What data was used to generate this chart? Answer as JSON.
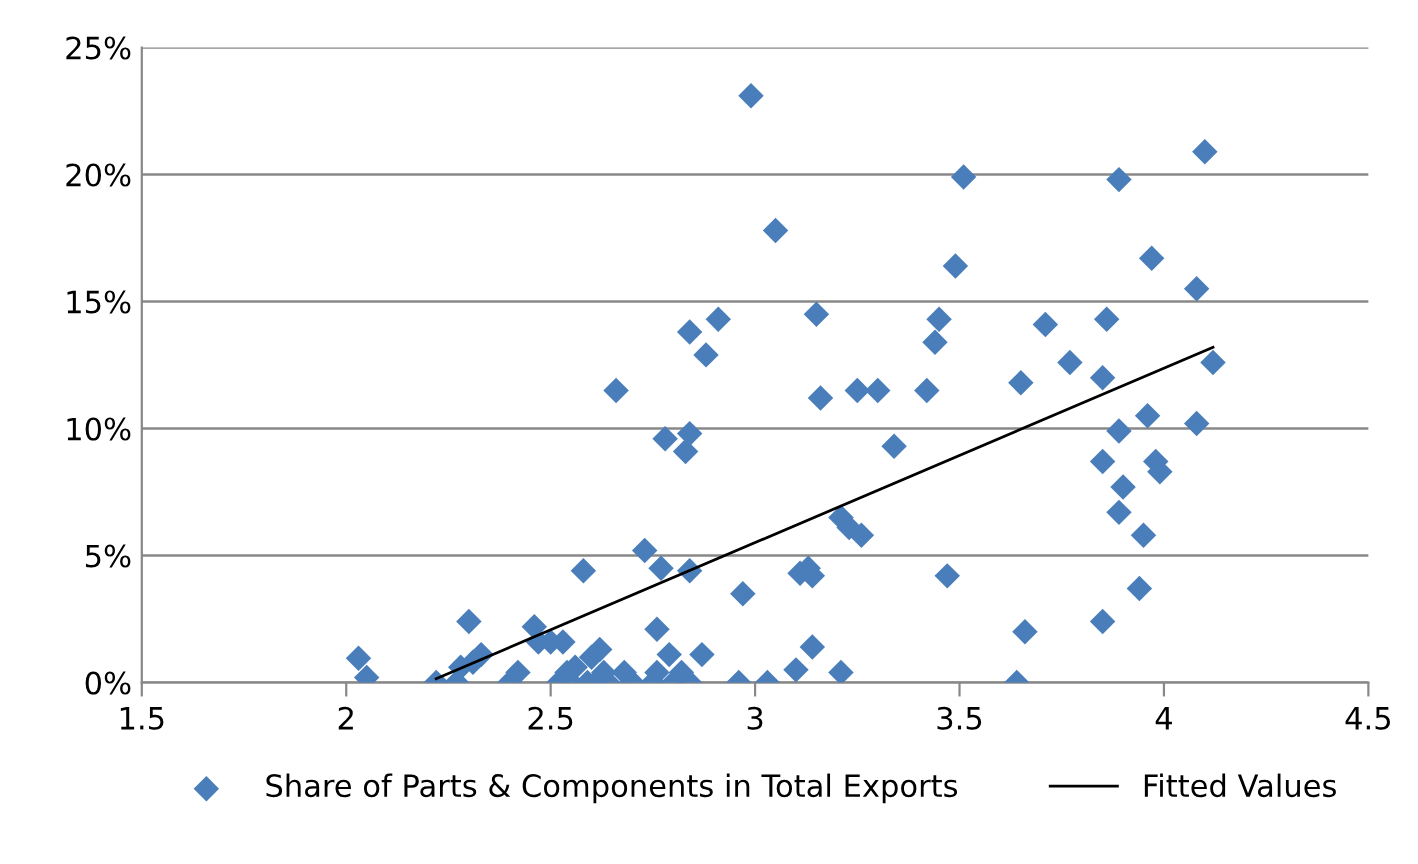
{
  "chart_data": {
    "type": "scatter",
    "xlim": [
      1.5,
      4.5
    ],
    "xticks": [
      1.5,
      2,
      2.5,
      3,
      3.5,
      4,
      4.5
    ],
    "ylim": [
      0,
      25
    ],
    "yticks": [
      {
        "value": 0,
        "label": "0%"
      },
      {
        "value": 5,
        "label": "5%"
      },
      {
        "value": 10,
        "label": "10%"
      },
      {
        "value": 15,
        "label": "15%"
      },
      {
        "value": 20,
        "label": "20%"
      },
      {
        "value": 25,
        "label": "25%"
      }
    ],
    "grid": "y",
    "legend": "bottom",
    "series": [
      {
        "name": "Share of Parts & Components in Total Exports",
        "marker": "diamond",
        "color": "#4a7ebb",
        "x": [
          2.03,
          2.05,
          2.22,
          2.27,
          2.28,
          2.3,
          2.31,
          2.33,
          2.4,
          2.42,
          2.46,
          2.47,
          2.5,
          2.53,
          2.52,
          2.54,
          2.55,
          2.56,
          2.58,
          2.59,
          2.6,
          2.61,
          2.62,
          2.63,
          2.64,
          2.66,
          2.68,
          2.7,
          2.73,
          2.75,
          2.76,
          2.76,
          2.77,
          2.78,
          2.79,
          2.8,
          2.82,
          2.83,
          2.84,
          2.84,
          2.84,
          2.84,
          2.87,
          2.88,
          2.91,
          2.96,
          2.97,
          2.99,
          3.03,
          3.05,
          3.1,
          3.11,
          3.13,
          3.14,
          3.14,
          3.15,
          3.16,
          3.21,
          3.21,
          3.23,
          3.25,
          3.26,
          3.3,
          3.34,
          3.42,
          3.44,
          3.45,
          3.47,
          3.49,
          3.51,
          3.64,
          3.65,
          3.66,
          3.71,
          3.77,
          3.85,
          3.85,
          3.85,
          3.86,
          3.89,
          3.89,
          3.89,
          3.9,
          3.94,
          3.95,
          3.96,
          3.97,
          3.98,
          3.99,
          4.08,
          4.08,
          4.1,
          4.12
        ],
        "values": [
          0.96,
          0.2,
          0,
          0,
          0.6,
          2.4,
          0.8,
          1.1,
          0,
          0.4,
          2.2,
          1.6,
          1.6,
          1.6,
          0,
          0.4,
          0,
          0.6,
          4.4,
          0,
          1.0,
          0,
          1.3,
          0.4,
          0,
          11.5,
          0.4,
          0,
          5.2,
          0,
          2.1,
          0.4,
          4.5,
          9.6,
          1.1,
          0,
          0.4,
          9.1,
          9.8,
          0,
          13.8,
          4.4,
          1.1,
          12.9,
          14.3,
          0,
          3.5,
          23.1,
          0,
          17.8,
          0.5,
          4.3,
          4.5,
          4.2,
          1.4,
          14.5,
          11.2,
          0.4,
          6.5,
          6.1,
          11.5,
          5.8,
          11.5,
          9.3,
          11.5,
          13.4,
          14.3,
          4.2,
          16.4,
          19.9,
          0,
          11.8,
          2.0,
          14.1,
          12.6,
          2.4,
          12.0,
          8.7,
          14.3,
          9.9,
          6.7,
          19.8,
          7.7,
          3.7,
          5.8,
          10.5,
          16.7,
          8.7,
          8.3,
          10.2,
          15.5,
          20.9,
          12.6
        ]
      },
      {
        "name": "Fitted Values",
        "type": "line",
        "marker": "none",
        "line_style": "solid",
        "color": "#000000",
        "x": [
          2.22,
          4.12
        ],
        "values": [
          0.15,
          13.2
        ]
      }
    ]
  }
}
